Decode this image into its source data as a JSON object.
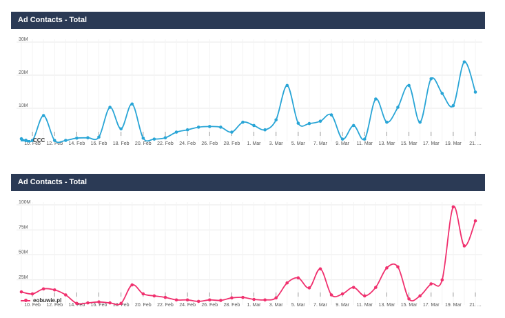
{
  "chart_data": [
    {
      "type": "line",
      "title": "Ad Contacts - Total",
      "color": "#29a5d6",
      "ylim": [
        0,
        30000000
      ],
      "yticks": [
        {
          "value": 10000000,
          "label": "10M"
        },
        {
          "value": 20000000,
          "label": "20M"
        },
        {
          "value": 30000000,
          "label": "30M"
        }
      ],
      "x": [
        "9. Feb",
        "10. Feb",
        "11. Feb",
        "12. Feb",
        "13. Feb",
        "14. Feb",
        "15. Feb",
        "16. Feb",
        "17. Feb",
        "18. Feb",
        "19. Feb",
        "20. Feb",
        "21. Feb",
        "22. Feb",
        "23. Feb",
        "24. Feb",
        "25. Feb",
        "26. Feb",
        "27. Feb",
        "28. Feb",
        "1. Mar",
        "2. Mar",
        "3. Mar",
        "4. Mar",
        "5. Mar",
        "6. Mar",
        "7. Mar",
        "8. Mar",
        "9. Mar",
        "10. Mar",
        "11. Mar",
        "12. Mar",
        "13. Mar",
        "14. Mar",
        "15. Mar",
        "16. Mar",
        "17. Mar",
        "18. Mar",
        "19. Mar",
        "20. Mar",
        "21. Mar",
        "22. Mar"
      ],
      "xtick_labels": [
        "10. Feb",
        "12. Feb",
        "14. Feb",
        "16. Feb",
        "18. Feb",
        "20. Feb",
        "22. Feb",
        "24. Feb",
        "26. Feb",
        "28. Feb",
        "1. Mar",
        "3. Mar",
        "5. Mar",
        "7. Mar",
        "9. Mar",
        "11. Mar",
        "13. Mar",
        "15. Mar",
        "17. Mar",
        "19. Mar",
        "21. ..."
      ],
      "series": [
        {
          "name": "CCC",
          "values": [
            800000,
            300000,
            7800000,
            300000,
            300000,
            1000000,
            1100000,
            1300000,
            10300000,
            3800000,
            11300000,
            1000000,
            700000,
            1100000,
            2800000,
            3500000,
            4300000,
            4500000,
            4300000,
            2800000,
            5800000,
            4800000,
            3500000,
            6500000,
            16900000,
            5500000,
            5400000,
            6100000,
            8000000,
            700000,
            4800000,
            700000,
            12800000,
            5800000,
            10300000,
            16900000,
            5800000,
            18900000,
            14500000,
            10800000,
            24000000,
            14900000
          ]
        }
      ]
    },
    {
      "type": "line",
      "title": "Ad Contacts - Total",
      "color": "#f0306e",
      "ylim": [
        0,
        100000000
      ],
      "yticks": [
        {
          "value": 25000000,
          "label": "25M"
        },
        {
          "value": 50000000,
          "label": "50M"
        },
        {
          "value": 75000000,
          "label": "75M"
        },
        {
          "value": 100000000,
          "label": "100M"
        }
      ],
      "x": [
        "9. Feb",
        "10. Feb",
        "11. Feb",
        "12. Feb",
        "13. Feb",
        "14. Feb",
        "15. Feb",
        "16. Feb",
        "17. Feb",
        "18. Feb",
        "19. Feb",
        "20. Feb",
        "21. Feb",
        "22. Feb",
        "23. Feb",
        "24. Feb",
        "25. Feb",
        "26. Feb",
        "27. Feb",
        "28. Feb",
        "1. Mar",
        "2. Mar",
        "3. Mar",
        "4. Mar",
        "5. Mar",
        "6. Mar",
        "7. Mar",
        "8. Mar",
        "9. Mar",
        "10. Mar",
        "11. Mar",
        "12. Mar",
        "13. Mar",
        "14. Mar",
        "15. Mar",
        "16. Mar",
        "17. Mar",
        "18. Mar",
        "19. Mar",
        "20. Mar",
        "21. Mar",
        "22. Mar"
      ],
      "xtick_labels": [
        "10. Feb",
        "12. Feb",
        "14. Feb",
        "16. Feb",
        "18. Feb",
        "20. Feb",
        "22. Feb",
        "24. Feb",
        "26. Feb",
        "28. Feb",
        "1. Mar",
        "3. Mar",
        "5. Mar",
        "7. Mar",
        "9. Mar",
        "11. Mar",
        "13. Mar",
        "15. Mar",
        "17. Mar",
        "19. Mar",
        "21. ..."
      ],
      "series": [
        {
          "name": "eobuwie.pl",
          "values": [
            13000000,
            11000000,
            16000000,
            15000000,
            10000000,
            1500000,
            2000000,
            3000000,
            2000000,
            1500000,
            20000000,
            11000000,
            9000000,
            7500000,
            5000000,
            5000000,
            3500000,
            5000000,
            4500000,
            7000000,
            7500000,
            5500000,
            5000000,
            7000000,
            22000000,
            27000000,
            17000000,
            36000000,
            10000000,
            11000000,
            17500000,
            9000000,
            17500000,
            37000000,
            38000000,
            6000000,
            9000000,
            21000000,
            25000000,
            98000000,
            59000000,
            84000000
          ]
        }
      ]
    }
  ]
}
